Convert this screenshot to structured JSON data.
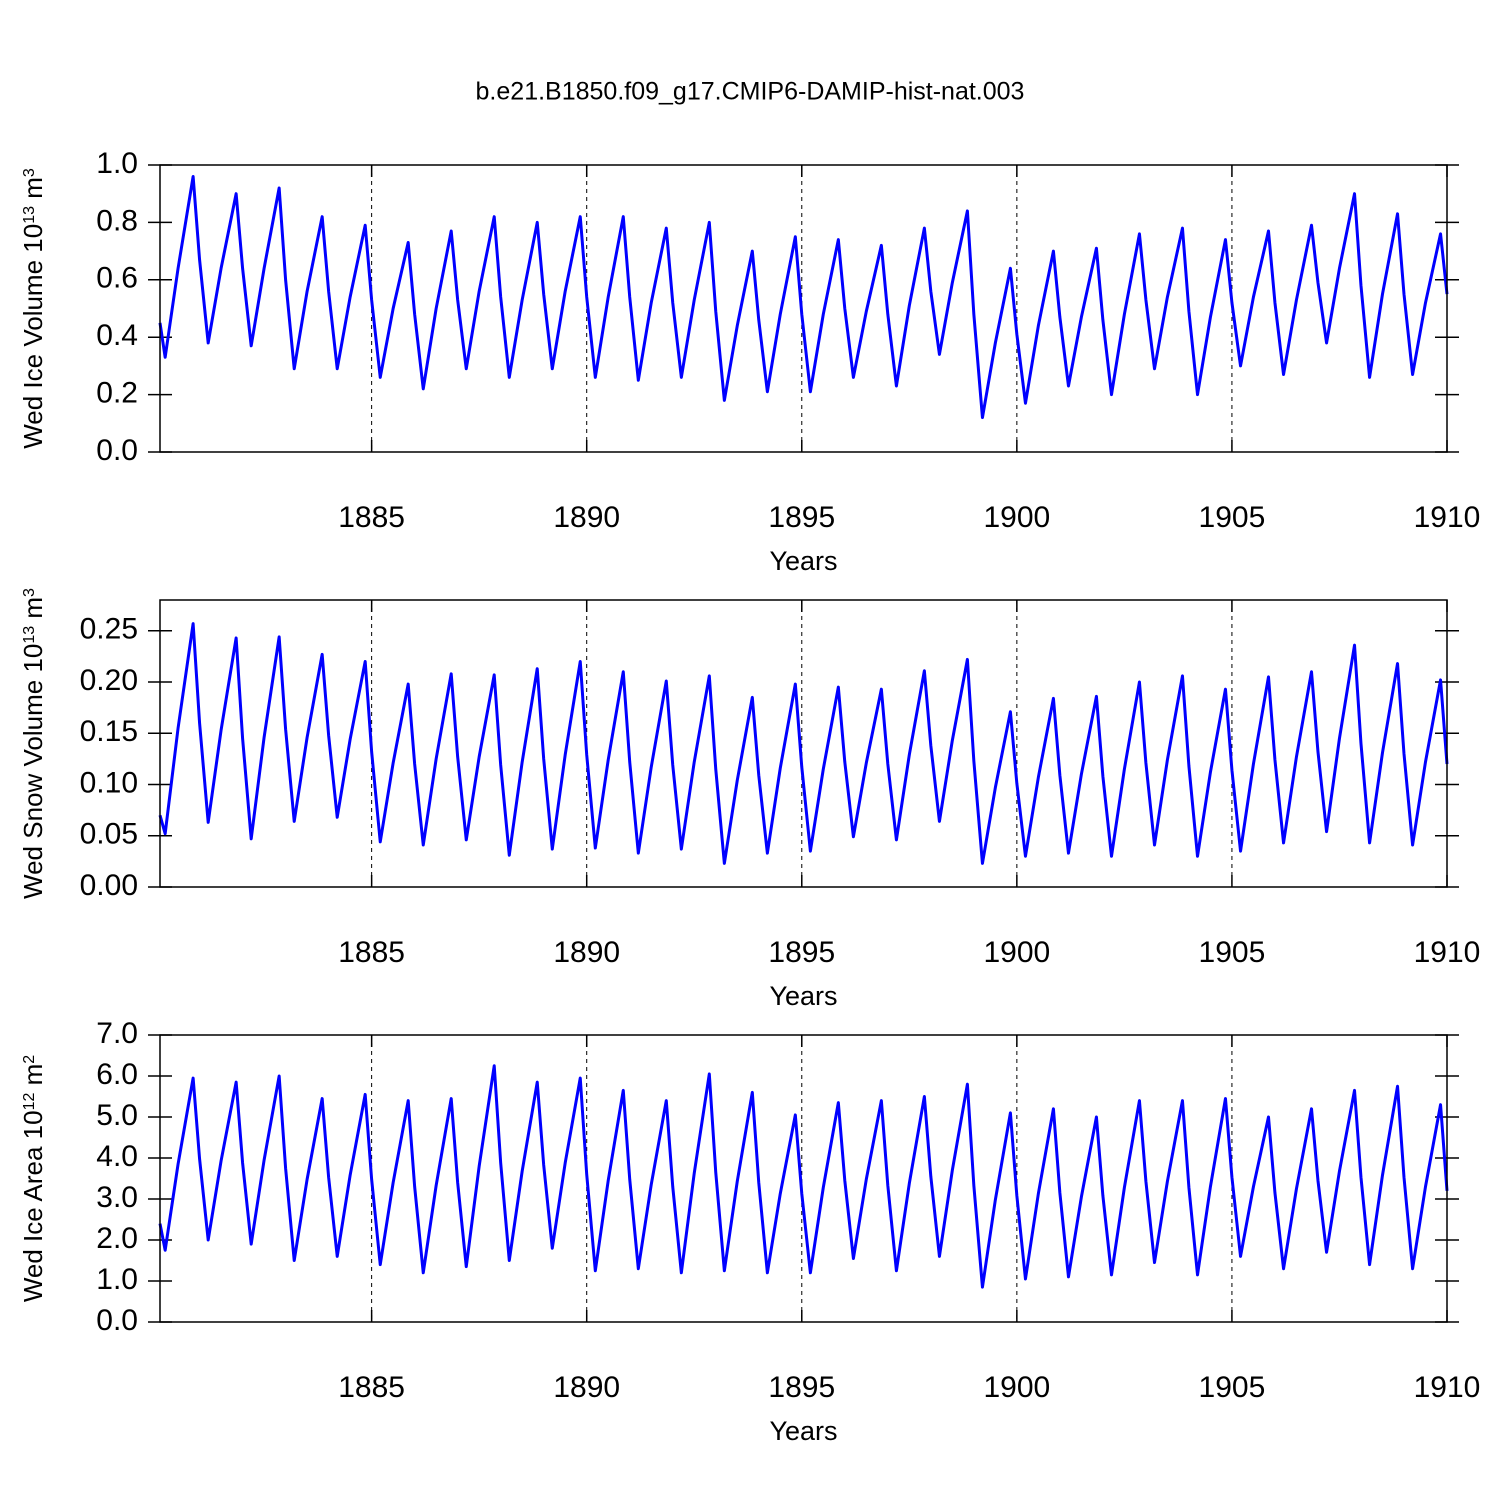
{
  "title": "b.e21.B1850.f09_g17.CMIP6-DAMIP-hist-nat.003",
  "chart_data": [
    {
      "type": "line",
      "color": "#0000ff",
      "grid": true,
      "xlabel": "Years",
      "ylabel_parts": [
        {
          "text": "Wed Ice Volume 10"
        },
        {
          "text": "13",
          "sup": true
        },
        {
          "text": " m"
        },
        {
          "text": "3",
          "sup": true
        }
      ],
      "xlim": [
        1880.08,
        1910
      ],
      "xticks": [
        1885,
        1890,
        1895,
        1900,
        1905,
        1910
      ],
      "ylim": [
        0,
        1
      ],
      "yticks": [
        {
          "value": 0,
          "label": "0.0"
        },
        {
          "value": 0.2,
          "label": "0.2"
        },
        {
          "value": 0.4,
          "label": "0.4"
        },
        {
          "value": 0.6,
          "label": "0.6"
        },
        {
          "value": 0.8,
          "label": "0.8"
        },
        {
          "value": 1,
          "label": "1.0"
        }
      ],
      "x": [
        1880.08,
        1880.2,
        1880.5,
        1880.85,
        1881,
        1881.2,
        1881.5,
        1881.85,
        1882,
        1882.2,
        1882.5,
        1882.85,
        1883,
        1883.2,
        1883.5,
        1883.85,
        1884,
        1884.2,
        1884.5,
        1884.85,
        1885,
        1885.2,
        1885.5,
        1885.85,
        1886,
        1886.2,
        1886.5,
        1886.85,
        1887,
        1887.2,
        1887.5,
        1887.85,
        1888,
        1888.2,
        1888.5,
        1888.85,
        1889,
        1889.2,
        1889.5,
        1889.85,
        1890,
        1890.2,
        1890.5,
        1890.85,
        1891,
        1891.2,
        1891.5,
        1891.85,
        1892,
        1892.2,
        1892.5,
        1892.85,
        1893,
        1893.2,
        1893.5,
        1893.85,
        1894,
        1894.2,
        1894.5,
        1894.85,
        1895,
        1895.2,
        1895.5,
        1895.85,
        1896,
        1896.2,
        1896.5,
        1896.85,
        1897,
        1897.2,
        1897.5,
        1897.85,
        1898,
        1898.2,
        1898.5,
        1898.85,
        1899,
        1899.2,
        1899.5,
        1899.85,
        1900,
        1900.2,
        1900.5,
        1900.85,
        1901,
        1901.2,
        1901.5,
        1901.85,
        1902,
        1902.2,
        1902.5,
        1902.85,
        1903,
        1903.2,
        1903.5,
        1903.85,
        1904,
        1904.2,
        1904.5,
        1904.85,
        1905,
        1905.2,
        1905.5,
        1905.85,
        1906,
        1906.2,
        1906.5,
        1906.85,
        1907,
        1907.2,
        1907.5,
        1907.85,
        1908,
        1908.2,
        1908.5,
        1908.85,
        1909,
        1909.2,
        1909.5,
        1909.85,
        1910
      ],
      "values": [
        0.45,
        0.33,
        0.64,
        0.96,
        0.67,
        0.38,
        0.64,
        0.9,
        0.64,
        0.37,
        0.64,
        0.92,
        0.6,
        0.29,
        0.56,
        0.82,
        0.56,
        0.29,
        0.54,
        0.79,
        0.53,
        0.26,
        0.5,
        0.73,
        0.48,
        0.22,
        0.5,
        0.77,
        0.53,
        0.29,
        0.56,
        0.82,
        0.54,
        0.26,
        0.53,
        0.8,
        0.55,
        0.29,
        0.56,
        0.82,
        0.54,
        0.26,
        0.54,
        0.82,
        0.54,
        0.25,
        0.52,
        0.78,
        0.52,
        0.26,
        0.53,
        0.8,
        0.49,
        0.18,
        0.44,
        0.7,
        0.46,
        0.21,
        0.48,
        0.75,
        0.48,
        0.21,
        0.48,
        0.74,
        0.5,
        0.26,
        0.49,
        0.72,
        0.48,
        0.23,
        0.51,
        0.78,
        0.56,
        0.34,
        0.59,
        0.84,
        0.48,
        0.12,
        0.38,
        0.64,
        0.41,
        0.17,
        0.44,
        0.7,
        0.47,
        0.23,
        0.47,
        0.71,
        0.46,
        0.2,
        0.48,
        0.76,
        0.53,
        0.29,
        0.54,
        0.78,
        0.49,
        0.2,
        0.47,
        0.74,
        0.52,
        0.3,
        0.54,
        0.77,
        0.52,
        0.27,
        0.53,
        0.79,
        0.59,
        0.38,
        0.64,
        0.9,
        0.58,
        0.26,
        0.55,
        0.83,
        0.55,
        0.27,
        0.52,
        0.76,
        0.55
      ]
    },
    {
      "type": "line",
      "color": "#0000ff",
      "grid": true,
      "xlabel": "Years",
      "ylabel_parts": [
        {
          "text": "Wed Snow Volume 10"
        },
        {
          "text": "13",
          "sup": true
        },
        {
          "text": " m"
        },
        {
          "text": "3",
          "sup": true
        }
      ],
      "xlim": [
        1880.08,
        1910
      ],
      "xticks": [
        1885,
        1890,
        1895,
        1900,
        1905,
        1910
      ],
      "ylim": [
        0,
        0.28
      ],
      "yticks": [
        {
          "value": 0,
          "label": "0.00"
        },
        {
          "value": 0.05,
          "label": "0.05"
        },
        {
          "value": 0.1,
          "label": "0.10"
        },
        {
          "value": 0.15,
          "label": "0.15"
        },
        {
          "value": 0.2,
          "label": "0.20"
        },
        {
          "value": 0.25,
          "label": "0.25"
        }
      ],
      "x": [
        1880.08,
        1880.2,
        1880.5,
        1880.85,
        1881,
        1881.2,
        1881.5,
        1881.85,
        1882,
        1882.2,
        1882.5,
        1882.85,
        1883,
        1883.2,
        1883.5,
        1883.85,
        1884,
        1884.2,
        1884.5,
        1884.85,
        1885,
        1885.2,
        1885.5,
        1885.85,
        1886,
        1886.2,
        1886.5,
        1886.85,
        1887,
        1887.2,
        1887.5,
        1887.85,
        1888,
        1888.2,
        1888.5,
        1888.85,
        1889,
        1889.2,
        1889.5,
        1889.85,
        1890,
        1890.2,
        1890.5,
        1890.85,
        1891,
        1891.2,
        1891.5,
        1891.85,
        1892,
        1892.2,
        1892.5,
        1892.85,
        1893,
        1893.2,
        1893.5,
        1893.85,
        1894,
        1894.2,
        1894.5,
        1894.85,
        1895,
        1895.2,
        1895.5,
        1895.85,
        1896,
        1896.2,
        1896.5,
        1896.85,
        1897,
        1897.2,
        1897.5,
        1897.85,
        1898,
        1898.2,
        1898.5,
        1898.85,
        1899,
        1899.2,
        1899.5,
        1899.85,
        1900,
        1900.2,
        1900.5,
        1900.85,
        1901,
        1901.2,
        1901.5,
        1901.85,
        1902,
        1902.2,
        1902.5,
        1902.85,
        1903,
        1903.2,
        1903.5,
        1903.85,
        1904,
        1904.2,
        1904.5,
        1904.85,
        1905,
        1905.2,
        1905.5,
        1905.85,
        1906,
        1906.2,
        1906.5,
        1906.85,
        1907,
        1907.2,
        1907.5,
        1907.85,
        1908,
        1908.2,
        1908.5,
        1908.85,
        1909,
        1909.2,
        1909.5,
        1909.85,
        1910
      ],
      "values": [
        0.07,
        0.052,
        0.155,
        0.257,
        0.16,
        0.063,
        0.153,
        0.243,
        0.145,
        0.047,
        0.146,
        0.244,
        0.154,
        0.064,
        0.146,
        0.227,
        0.148,
        0.068,
        0.144,
        0.22,
        0.132,
        0.044,
        0.121,
        0.198,
        0.12,
        0.041,
        0.125,
        0.208,
        0.127,
        0.046,
        0.127,
        0.207,
        0.119,
        0.031,
        0.122,
        0.213,
        0.125,
        0.037,
        0.129,
        0.22,
        0.129,
        0.038,
        0.124,
        0.21,
        0.122,
        0.033,
        0.117,
        0.201,
        0.119,
        0.037,
        0.122,
        0.206,
        0.115,
        0.023,
        0.104,
        0.185,
        0.109,
        0.033,
        0.116,
        0.198,
        0.117,
        0.035,
        0.115,
        0.195,
        0.122,
        0.049,
        0.121,
        0.193,
        0.12,
        0.046,
        0.129,
        0.211,
        0.138,
        0.064,
        0.143,
        0.222,
        0.123,
        0.023,
        0.097,
        0.171,
        0.101,
        0.03,
        0.107,
        0.184,
        0.109,
        0.033,
        0.11,
        0.186,
        0.108,
        0.03,
        0.115,
        0.2,
        0.121,
        0.041,
        0.124,
        0.206,
        0.118,
        0.03,
        0.112,
        0.193,
        0.114,
        0.035,
        0.12,
        0.205,
        0.124,
        0.043,
        0.127,
        0.21,
        0.132,
        0.054,
        0.145,
        0.236,
        0.14,
        0.043,
        0.131,
        0.218,
        0.13,
        0.041,
        0.122,
        0.202,
        0.12
      ]
    },
    {
      "type": "line",
      "color": "#0000ff",
      "grid": true,
      "xlabel": "Years",
      "ylabel_parts": [
        {
          "text": "Wed Ice Area 10"
        },
        {
          "text": "12",
          "sup": true
        },
        {
          "text": " m"
        },
        {
          "text": "2",
          "sup": true
        }
      ],
      "xlim": [
        1880.08,
        1910
      ],
      "xticks": [
        1885,
        1890,
        1895,
        1900,
        1905,
        1910
      ],
      "ylim": [
        0,
        7
      ],
      "yticks": [
        {
          "value": 0,
          "label": "0.0"
        },
        {
          "value": 1,
          "label": "1.0"
        },
        {
          "value": 2,
          "label": "2.0"
        },
        {
          "value": 3,
          "label": "3.0"
        },
        {
          "value": 4,
          "label": "4.0"
        },
        {
          "value": 5,
          "label": "5.0"
        },
        {
          "value": 6,
          "label": "6.0"
        },
        {
          "value": 7,
          "label": "7.0"
        }
      ],
      "x": [
        1880.08,
        1880.2,
        1880.5,
        1880.85,
        1881,
        1881.2,
        1881.5,
        1881.85,
        1882,
        1882.2,
        1882.5,
        1882.85,
        1883,
        1883.2,
        1883.5,
        1883.85,
        1884,
        1884.2,
        1884.5,
        1884.85,
        1885,
        1885.2,
        1885.5,
        1885.85,
        1886,
        1886.2,
        1886.5,
        1886.85,
        1887,
        1887.2,
        1887.5,
        1887.85,
        1888,
        1888.2,
        1888.5,
        1888.85,
        1889,
        1889.2,
        1889.5,
        1889.85,
        1890,
        1890.2,
        1890.5,
        1890.85,
        1891,
        1891.2,
        1891.5,
        1891.85,
        1892,
        1892.2,
        1892.5,
        1892.85,
        1893,
        1893.2,
        1893.5,
        1893.85,
        1894,
        1894.2,
        1894.5,
        1894.85,
        1895,
        1895.2,
        1895.5,
        1895.85,
        1896,
        1896.2,
        1896.5,
        1896.85,
        1897,
        1897.2,
        1897.5,
        1897.85,
        1898,
        1898.2,
        1898.5,
        1898.85,
        1899,
        1899.2,
        1899.5,
        1899.85,
        1900,
        1900.2,
        1900.5,
        1900.85,
        1901,
        1901.2,
        1901.5,
        1901.85,
        1902,
        1902.2,
        1902.5,
        1902.85,
        1903,
        1903.2,
        1903.5,
        1903.85,
        1904,
        1904.2,
        1904.5,
        1904.85,
        1905,
        1905.2,
        1905.5,
        1905.85,
        1906,
        1906.2,
        1906.5,
        1906.85,
        1907,
        1907.2,
        1907.5,
        1907.85,
        1908,
        1908.2,
        1908.5,
        1908.85,
        1909,
        1909.2,
        1909.5,
        1909.85,
        1910
      ],
      "values": [
        2.4,
        1.75,
        3.85,
        5.95,
        3.98,
        2.0,
        3.93,
        5.85,
        3.88,
        1.9,
        3.95,
        6.0,
        3.75,
        1.5,
        3.48,
        5.45,
        3.53,
        1.6,
        3.58,
        5.55,
        3.48,
        1.4,
        3.4,
        5.4,
        3.3,
        1.2,
        3.33,
        5.45,
        3.4,
        1.35,
        3.8,
        6.25,
        3.88,
        1.5,
        3.68,
        5.85,
        3.83,
        1.8,
        3.88,
        5.95,
        3.6,
        1.25,
        3.45,
        5.65,
        3.48,
        1.3,
        3.35,
        5.4,
        3.3,
        1.2,
        3.63,
        6.05,
        3.65,
        1.25,
        3.43,
        5.6,
        3.4,
        1.2,
        3.13,
        5.05,
        3.13,
        1.2,
        3.28,
        5.35,
        3.45,
        1.55,
        3.48,
        5.4,
        3.33,
        1.25,
        3.38,
        5.5,
        3.55,
        1.6,
        3.7,
        5.8,
        3.33,
        0.85,
        2.98,
        5.1,
        3.08,
        1.05,
        3.13,
        5.2,
        3.15,
        1.1,
        3.05,
        5.0,
        3.08,
        1.15,
        3.28,
        5.4,
        3.43,
        1.45,
        3.43,
        5.4,
        3.28,
        1.15,
        3.3,
        5.45,
        3.53,
        1.6,
        3.3,
        5.0,
        3.15,
        1.3,
        3.25,
        5.2,
        3.45,
        1.7,
        3.68,
        5.65,
        3.53,
        1.4,
        3.58,
        5.75,
        3.53,
        1.3,
        3.3,
        5.3,
        3.2
      ]
    }
  ]
}
